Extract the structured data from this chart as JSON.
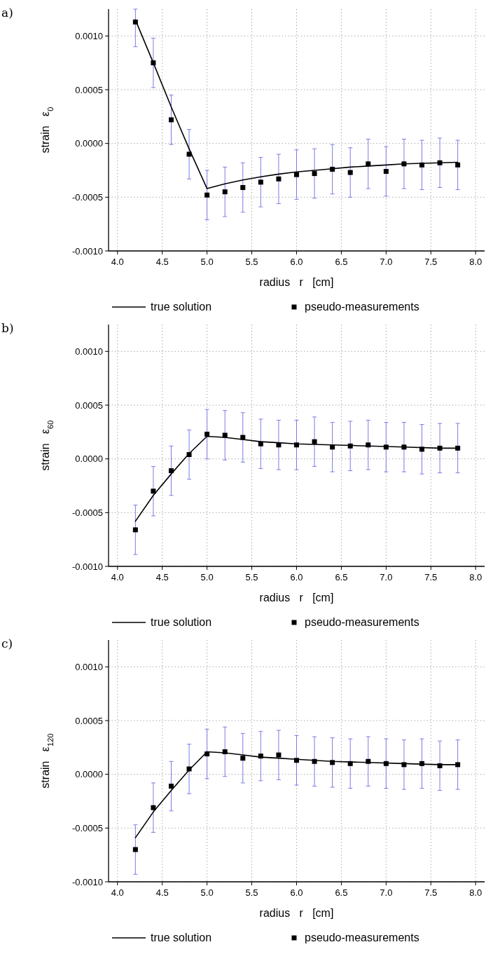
{
  "chart_data": [
    {
      "type": "line",
      "title": "a)",
      "xlabel": "radius   r   [cm]",
      "ylabel": "strain   ε$_{0}$",
      "xlim": [
        3.9,
        8.1
      ],
      "ylim": [
        -0.001,
        0.00125
      ],
      "xticks": [
        {
          "value": 4,
          "label": "4.0"
        },
        {
          "value": 4.5,
          "label": "4.5"
        },
        {
          "value": 5,
          "label": "5.0"
        },
        {
          "value": 5.5,
          "label": "5.5"
        },
        {
          "value": 6,
          "label": "6.0"
        },
        {
          "value": 6.5,
          "label": "6.5"
        },
        {
          "value": 7,
          "label": "7.0"
        },
        {
          "value": 7.5,
          "label": "7.5"
        },
        {
          "value": 8,
          "label": "8.0"
        }
      ],
      "yticks": [
        {
          "value": -0.001,
          "label": "-0.0010"
        },
        {
          "value": -0.0005,
          "label": "-0.0005"
        },
        {
          "value": 0,
          "label": "0.0000"
        },
        {
          "value": 0.0005,
          "label": "0.0005"
        },
        {
          "value": 0.001,
          "label": "0.0010"
        }
      ],
      "grid": true,
      "legend": "bottom",
      "series": [
        {
          "name": "true solution",
          "type": "line",
          "marker": "none",
          "line_style": "solid",
          "color": "#000000",
          "x": [
            4.2,
            4.4,
            4.6,
            4.8,
            5.0,
            5.2,
            5.4,
            5.6,
            5.8,
            6.0,
            6.2,
            6.4,
            6.6,
            6.8,
            7.0,
            7.2,
            7.4,
            7.6,
            7.8
          ],
          "values": [
            0.00115,
            0.00075,
            0.00034,
            -5e-05,
            -0.00042,
            -0.000375,
            -0.00034,
            -0.00031,
            -0.000285,
            -0.000265,
            -0.00025,
            -0.000235,
            -0.00022,
            -0.00021,
            -0.0002,
            -0.00019,
            -0.000185,
            -0.00018,
            -0.000175
          ]
        },
        {
          "name": "pseudo-measurements",
          "type": "scatter",
          "marker": "square",
          "color": "#000000",
          "x": [
            4.2,
            4.4,
            4.6,
            4.8,
            5.0,
            5.2,
            5.4,
            5.6,
            5.8,
            6.0,
            6.2,
            6.4,
            6.6,
            6.8,
            7.0,
            7.2,
            7.4,
            7.6,
            7.8
          ],
          "values": [
            0.00113,
            0.00075,
            0.00022,
            -0.0001,
            -0.00048,
            -0.00045,
            -0.00041,
            -0.00036,
            -0.00033,
            -0.00029,
            -0.00028,
            -0.00024,
            -0.00027,
            -0.00019,
            -0.00026,
            -0.00019,
            -0.0002,
            -0.00018,
            -0.0002
          ],
          "errors": [
            [
              0.0009,
              0.00125
            ],
            0.00023,
            0.00023,
            0.00023,
            0.00023,
            0.00023,
            0.00023,
            0.00023,
            0.00023,
            0.00023,
            0.00023,
            0.00023,
            0.00023,
            0.00023,
            0.00023,
            0.00023,
            0.00023,
            0.00023,
            0.00023
          ]
        }
      ]
    },
    {
      "type": "line",
      "title": "b)",
      "xlabel": "radius   r   [cm]",
      "ylabel": "strain   ε$_{60}$",
      "xlim": [
        3.9,
        8.1
      ],
      "ylim": [
        -0.001,
        0.00125
      ],
      "xticks": [
        {
          "value": 4,
          "label": "4.0"
        },
        {
          "value": 4.5,
          "label": "4.5"
        },
        {
          "value": 5,
          "label": "5.0"
        },
        {
          "value": 5.5,
          "label": "5.5"
        },
        {
          "value": 6,
          "label": "6.0"
        },
        {
          "value": 6.5,
          "label": "6.5"
        },
        {
          "value": 7,
          "label": "7.0"
        },
        {
          "value": 7.5,
          "label": "7.5"
        },
        {
          "value": 8,
          "label": "8.0"
        }
      ],
      "yticks": [
        {
          "value": -0.001,
          "label": "-0.0010"
        },
        {
          "value": -0.0005,
          "label": "-0.0005"
        },
        {
          "value": 0,
          "label": "0.0000"
        },
        {
          "value": 0.0005,
          "label": "0.0005"
        },
        {
          "value": 0.001,
          "label": "0.0010"
        }
      ],
      "grid": true,
      "legend": "bottom",
      "series": [
        {
          "name": "true solution",
          "type": "line",
          "marker": "none",
          "line_style": "solid",
          "color": "#000000",
          "x": [
            4.2,
            4.4,
            4.6,
            4.8,
            5.0,
            5.2,
            5.4,
            5.6,
            5.8,
            6.0,
            6.4,
            6.8,
            7.2,
            7.6,
            7.8
          ],
          "values": [
            -0.00058,
            -0.00034,
            -0.00014,
            5e-05,
            0.00021,
            0.0002,
            0.00018,
            0.00016,
            0.00015,
            0.00014,
            0.00013,
            0.00012,
            0.00011,
            0.0001,
            0.0001
          ]
        },
        {
          "name": "pseudo-measurements",
          "type": "scatter",
          "marker": "square",
          "color": "#000000",
          "x": [
            4.2,
            4.4,
            4.6,
            4.8,
            5.0,
            5.2,
            5.4,
            5.6,
            5.8,
            6.0,
            6.2,
            6.4,
            6.6,
            6.8,
            7.0,
            7.2,
            7.4,
            7.6,
            7.8
          ],
          "values": [
            -0.00066,
            -0.0003,
            -0.00011,
            4e-05,
            0.00023,
            0.00022,
            0.0002,
            0.00014,
            0.00013,
            0.00013,
            0.00016,
            0.00011,
            0.00012,
            0.00013,
            0.00011,
            0.00011,
            9e-05,
            0.0001,
            0.0001
          ],
          "errors": [
            0.00023,
            0.00023,
            0.00023,
            0.00023,
            0.00023,
            0.00023,
            0.00023,
            0.00023,
            0.00023,
            0.00023,
            0.00023,
            0.00023,
            0.00023,
            0.00023,
            0.00023,
            0.00023,
            0.00023,
            0.00023,
            0.00023
          ]
        }
      ]
    },
    {
      "type": "line",
      "title": "c)",
      "xlabel": "radius   r   [cm]",
      "ylabel": "strain   ε$_{120}$",
      "xlim": [
        3.9,
        8.1
      ],
      "ylim": [
        -0.001,
        0.00125
      ],
      "xticks": [
        {
          "value": 4,
          "label": "4.0"
        },
        {
          "value": 4.5,
          "label": "4.5"
        },
        {
          "value": 5,
          "label": "5.0"
        },
        {
          "value": 5.5,
          "label": "5.5"
        },
        {
          "value": 6,
          "label": "6.0"
        },
        {
          "value": 6.5,
          "label": "6.5"
        },
        {
          "value": 7,
          "label": "7.0"
        },
        {
          "value": 7.5,
          "label": "7.5"
        },
        {
          "value": 8,
          "label": "8.0"
        }
      ],
      "yticks": [
        {
          "value": -0.001,
          "label": "-0.0010"
        },
        {
          "value": -0.0005,
          "label": "-0.0005"
        },
        {
          "value": 0,
          "label": "0.0000"
        },
        {
          "value": 0.0005,
          "label": "0.0005"
        },
        {
          "value": 0.001,
          "label": "0.0010"
        }
      ],
      "grid": true,
      "legend": "bottom",
      "series": [
        {
          "name": "true solution",
          "type": "line",
          "marker": "none",
          "line_style": "solid",
          "color": "#000000",
          "x": [
            4.2,
            4.4,
            4.6,
            4.8,
            5.0,
            5.2,
            5.4,
            5.6,
            5.8,
            6.0,
            6.4,
            6.8,
            7.2,
            7.6,
            7.8
          ],
          "values": [
            -0.00059,
            -0.00035,
            -0.00015,
            4e-05,
            0.00021,
            0.0002,
            0.00018,
            0.00016,
            0.00015,
            0.00014,
            0.00012,
            0.00011,
            0.0001,
            9e-05,
            9e-05
          ]
        },
        {
          "name": "pseudo-measurements",
          "type": "scatter",
          "marker": "square",
          "color": "#000000",
          "x": [
            4.2,
            4.4,
            4.6,
            4.8,
            5.0,
            5.2,
            5.4,
            5.6,
            5.8,
            6.0,
            6.2,
            6.4,
            6.6,
            6.8,
            7.0,
            7.2,
            7.4,
            7.6,
            7.8
          ],
          "values": [
            -0.0007,
            -0.00031,
            -0.00011,
            5e-05,
            0.00019,
            0.00021,
            0.00015,
            0.00017,
            0.00018,
            0.00013,
            0.00012,
            0.00011,
            0.0001,
            0.00012,
            0.0001,
            9e-05,
            0.0001,
            8e-05,
            9e-05
          ],
          "errors": [
            0.00023,
            0.00023,
            0.00023,
            0.00023,
            0.00023,
            0.00023,
            0.00023,
            0.00023,
            0.00023,
            0.00023,
            0.00023,
            0.00023,
            0.00023,
            0.00023,
            0.00023,
            0.00023,
            0.00023,
            0.00023,
            0.00023
          ]
        }
      ]
    }
  ]
}
